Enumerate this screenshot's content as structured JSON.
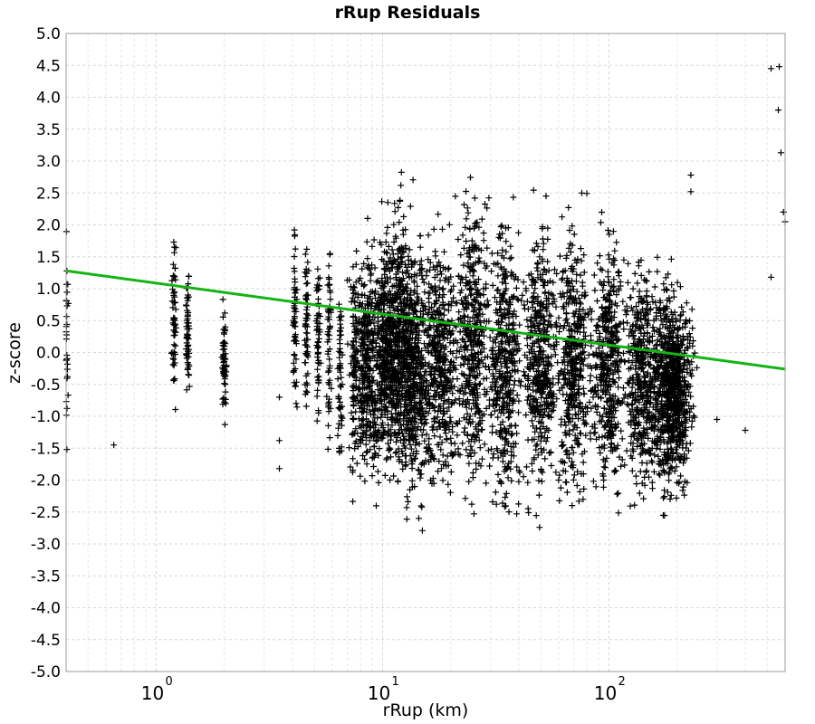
{
  "chart_data": {
    "type": "scatter",
    "title": "rRup Residuals",
    "xlabel": "rRup (km)",
    "ylabel": "z-score",
    "x_scale": "log",
    "xlim": [
      0.4,
      600
    ],
    "ylim": [
      -5.0,
      5.0
    ],
    "grid": true,
    "x_ticks": [
      {
        "base": "10",
        "exp": "0",
        "value": 1
      },
      {
        "base": "10",
        "exp": "1",
        "value": 10
      },
      {
        "base": "10",
        "exp": "2",
        "value": 100
      }
    ],
    "y_ticks": [
      "5.0",
      "4.5",
      "4.0",
      "3.5",
      "3.0",
      "2.5",
      "2.0",
      "1.5",
      "1.0",
      "0.5",
      "0.0",
      "-0.5",
      "-1.0",
      "-1.5",
      "-2.0",
      "-2.5",
      "-3.0",
      "-3.5",
      "-4.0",
      "-4.5",
      "-5.0"
    ],
    "series": [
      {
        "marker": "+",
        "color": "#000000",
        "columns": [
          {
            "x": 0.4,
            "y_min": -2.1,
            "y_max": 2.45
          },
          {
            "x": 1.2,
            "y_min": -1.1,
            "y_max": 2.3
          },
          {
            "x": 1.38,
            "y_min": -0.8,
            "y_max": 1.35
          },
          {
            "x": 2.0,
            "y_min": -1.3,
            "y_max": 0.95
          },
          {
            "x": 4.1,
            "y_min": -1.4,
            "y_max": 2.3
          },
          {
            "x": 4.6,
            "y_min": -1.5,
            "y_max": 2.1
          },
          {
            "x": 5.2,
            "y_min": -1.7,
            "y_max": 2.0
          },
          {
            "x": 5.8,
            "y_min": -1.9,
            "y_max": 2.2
          },
          {
            "x": 6.5,
            "y_min": -2.4,
            "y_max": 1.7
          },
          {
            "x": 7.5,
            "y_min": -2.3,
            "y_max": 2.2
          },
          {
            "x": 8.5,
            "y_min": -2.6,
            "y_max": 2.1
          },
          {
            "x": 10.5,
            "y_min": -2.3,
            "y_max": 2.4
          },
          {
            "x": 12.0,
            "y_min": -2.6,
            "y_max": 3.0
          },
          {
            "x": 14.0,
            "y_min": -2.9,
            "y_max": 2.4
          },
          {
            "x": 18.0,
            "y_min": -2.6,
            "y_max": 2.3
          },
          {
            "x": 25.0,
            "y_min": -2.8,
            "y_max": 3.1
          },
          {
            "x": 35.0,
            "y_min": -3.1,
            "y_max": 2.8
          },
          {
            "x": 50.0,
            "y_min": -2.9,
            "y_max": 2.6
          },
          {
            "x": 70.0,
            "y_min": -2.9,
            "y_max": 2.5
          },
          {
            "x": 100.0,
            "y_min": -2.7,
            "y_max": 2.4
          },
          {
            "x": 140.0,
            "y_min": -2.6,
            "y_max": 1.8
          },
          {
            "x": 180.0,
            "y_min": -2.7,
            "y_max": 1.6
          },
          {
            "x": 200.0,
            "y_min": -2.5,
            "y_max": 1.4
          }
        ],
        "outliers": [
          {
            "x": 0.65,
            "y": -1.45
          },
          {
            "x": 3.5,
            "y": -0.7
          },
          {
            "x": 3.5,
            "y": -1.38
          },
          {
            "x": 3.5,
            "y": -1.82
          },
          {
            "x": 230,
            "y": 2.78
          },
          {
            "x": 230,
            "y": 2.52
          },
          {
            "x": 300,
            "y": -1.05
          },
          {
            "x": 400,
            "y": -1.22
          },
          {
            "x": 520,
            "y": 4.45
          },
          {
            "x": 565,
            "y": 4.48
          },
          {
            "x": 560,
            "y": 3.8
          },
          {
            "x": 575,
            "y": 3.13
          },
          {
            "x": 520,
            "y": 1.18
          },
          {
            "x": 590,
            "y": 2.2
          },
          {
            "x": 600,
            "y": 2.05
          }
        ]
      },
      {
        "type": "line",
        "color": "#14b414",
        "points": [
          {
            "x": 0.4,
            "y": 1.28
          },
          {
            "x": 600,
            "y": -0.26
          }
        ]
      }
    ]
  }
}
